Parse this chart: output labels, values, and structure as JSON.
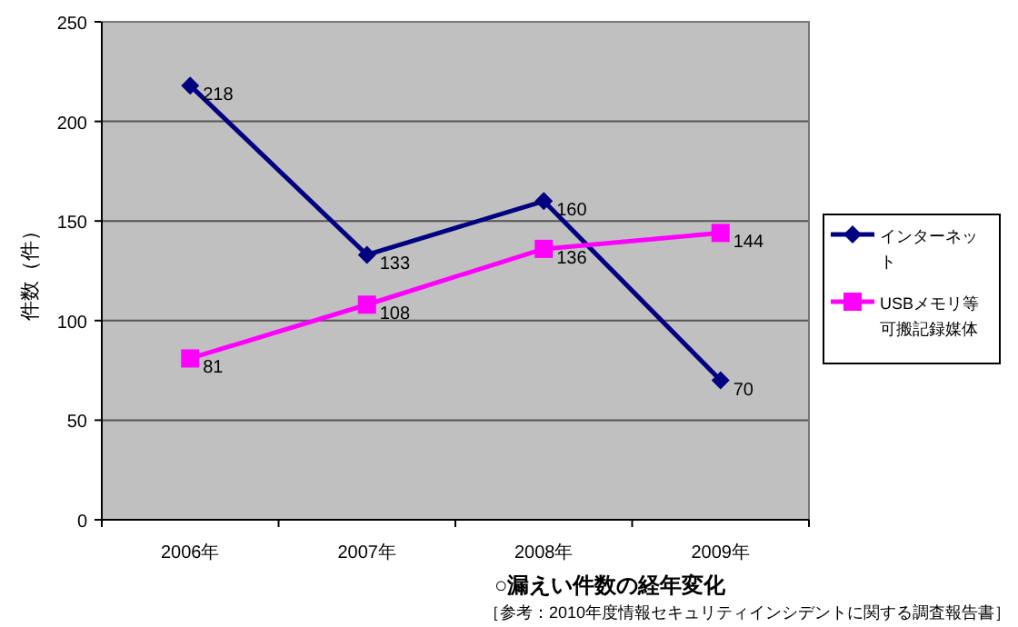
{
  "chart_data": {
    "type": "line",
    "ylabel": "件数（件）",
    "categories": [
      "2006年",
      "2007年",
      "2008年",
      "2009年"
    ],
    "series": [
      {
        "name": "インターネット",
        "color": "#000080",
        "marker": "diamond",
        "values": [
          218,
          133,
          160,
          70
        ]
      },
      {
        "name": "USBメモリ等可搬記録媒体",
        "color": "#ff00ff",
        "marker": "square",
        "values": [
          81,
          108,
          136,
          144
        ]
      }
    ],
    "ylim": [
      0,
      250
    ],
    "yticks": [
      0,
      50,
      100,
      150,
      200,
      250
    ],
    "grid": "y",
    "legend": "right",
    "data_labels": true,
    "annotations": [
      "○漏えい件数の経年変化",
      "［参考：2010年度情報セキュリティインシデントに関する調査報告書］"
    ]
  }
}
